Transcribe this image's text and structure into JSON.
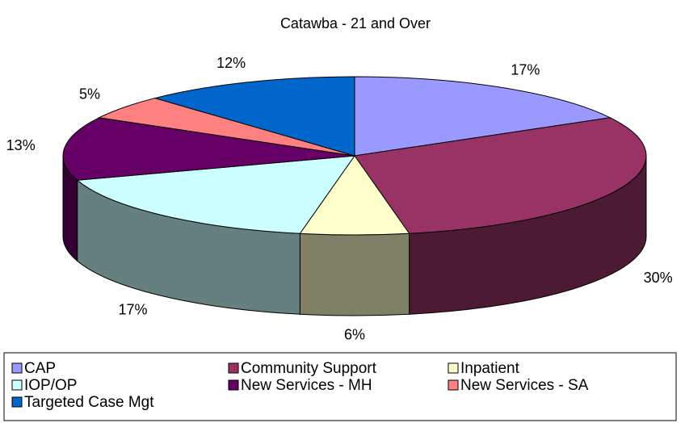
{
  "chart_data": {
    "type": "pie",
    "title": "Catawba - 21 and Over",
    "categories": [
      "CAP",
      "Community Support",
      "Inpatient",
      "IOP/OP",
      "New Services - MH",
      "New Services - SA",
      "Targeted Case Mgt"
    ],
    "values": [
      17,
      30,
      6,
      17,
      13,
      5,
      12
    ],
    "value_labels": [
      "17%",
      "30%",
      "6%",
      "17%",
      "13%",
      "5%",
      "12%"
    ],
    "colors": [
      "#9999ff",
      "#993366",
      "#ffffcc",
      "#ccffff",
      "#660066",
      "#ff8080",
      "#0066cc"
    ],
    "legend": "bottom"
  }
}
